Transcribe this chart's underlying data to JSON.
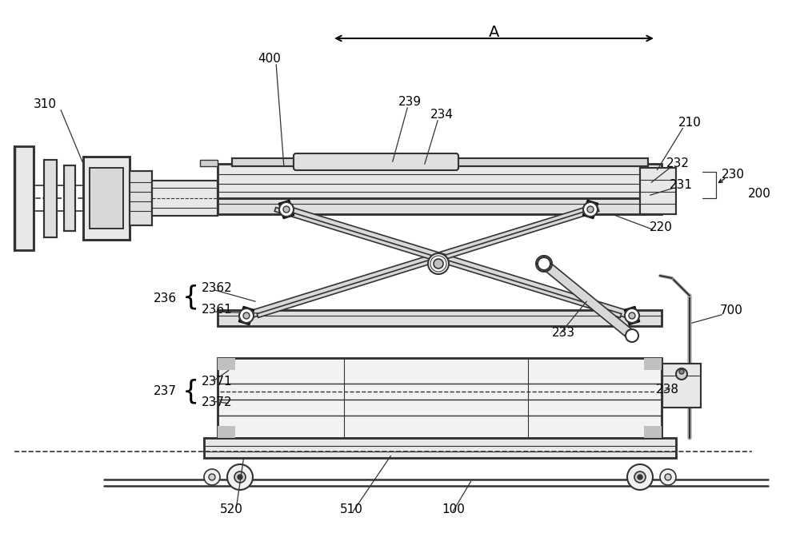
{
  "bg_color": "#ffffff",
  "line_color": "#333333",
  "dark_color": "#111111",
  "gray_color": "#888888",
  "light_gray": "#cccccc"
}
